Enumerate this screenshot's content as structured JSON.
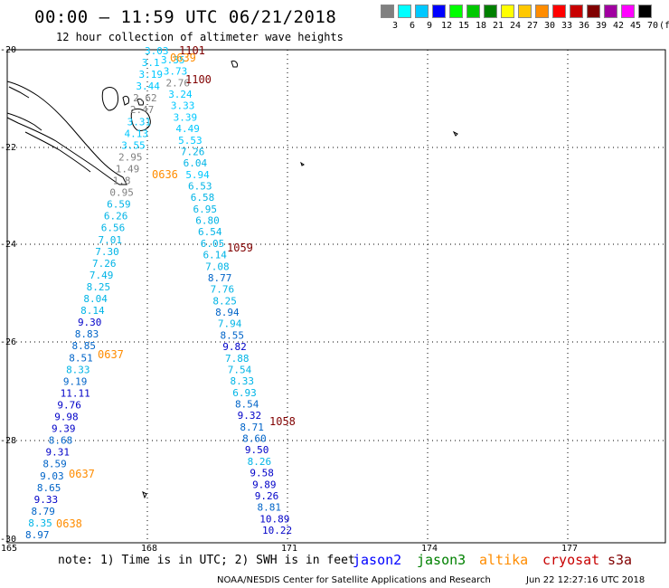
{
  "title": "00:00 – 11:59 UTC 06/21/2018",
  "subtitle": "12 hour collection of altimeter wave heights",
  "legend": {
    "unit": "(ft)",
    "colors": [
      "#808080",
      "#00ffff",
      "#00c8ff",
      "#0000ff",
      "#00ff00",
      "#00c800",
      "#008000",
      "#ffff00",
      "#ffc800",
      "#ff8c00",
      "#ff0000",
      "#c80000",
      "#800000",
      "#a000a0",
      "#ff00ff",
      "#000000"
    ],
    "labels": [
      "3",
      "6",
      "9",
      "12",
      "15",
      "18",
      "21",
      "24",
      "27",
      "30",
      "33",
      "36",
      "39",
      "42",
      "45",
      "70"
    ]
  },
  "axes": {
    "lat_labels": [
      "-20",
      "-22",
      "-24",
      "-26",
      "-28",
      "-30"
    ],
    "lon_labels": [
      "165",
      "168",
      "171",
      "174",
      "177"
    ]
  },
  "pass_times": [
    {
      "label": "1101",
      "color": "#800000"
    },
    {
      "label": "0639",
      "color": "#ff8c00"
    },
    {
      "label": "1100",
      "color": "#800000"
    },
    {
      "label": "0636",
      "color": "#ff8c00"
    },
    {
      "label": "1059",
      "color": "#800000"
    },
    {
      "label": "0637",
      "color": "#ff8c00"
    },
    {
      "label": "1058",
      "color": "#800000"
    },
    {
      "label": "0637",
      "color": "#ff8c00"
    },
    {
      "label": "0638",
      "color": "#ff8c00"
    }
  ],
  "track_west": [
    "3.03",
    "3.1",
    "3.19",
    "3.44",
    "2.62",
    "2.47",
    "3.31",
    "4.13",
    "3.55",
    "2.95",
    "1.49",
    "1.8",
    "0.95",
    "6.59",
    "6.26",
    "6.56",
    "7.01",
    "7.30",
    "7.26",
    "7.49",
    "8.25",
    "8.04",
    "8.14",
    "9.30",
    "8.83",
    "8.85",
    "8.51",
    "8.33",
    "9.19",
    "11.11",
    "9.76",
    "9.98",
    "9.39",
    "8.68",
    "9.31",
    "8.59",
    "9.03",
    "8.65",
    "9.33",
    "8.79",
    "8.35",
    "8.97"
  ],
  "track_east": [
    "3.35",
    "3.73",
    "2.76",
    "3.24",
    "3.33",
    "3.39",
    "4.49",
    "5.53",
    "7.26",
    "6.04",
    "5.94",
    "6.53",
    "6.58",
    "6.95",
    "6.80",
    "6.54",
    "6.05",
    "6.14",
    "7.08",
    "8.77",
    "7.76",
    "8.25",
    "8.94",
    "7.94",
    "8.55",
    "9.82",
    "7.88",
    "7.54",
    "8.33",
    "6.93",
    "8.54",
    "9.32",
    "8.71",
    "8.60",
    "9.50",
    "8.26",
    "9.58",
    "9.89",
    "9.26",
    "8.81",
    "10.89",
    "10.22"
  ],
  "note": "note: 1) Time is in UTC; 2) SWH is in feet",
  "satellites": [
    {
      "name": "jason2",
      "color": "#0000ff"
    },
    {
      "name": "jason3",
      "color": "#008000"
    },
    {
      "name": "altika",
      "color": "#ff8c00"
    },
    {
      "name": "cryosat",
      "color": "#c80000"
    },
    {
      "name": "s3a",
      "color": "#800000"
    }
  ],
  "footer": "NOAA/NESDIS Center for Satellite Applications and Research",
  "footer_time": "Jun 22 12:27:16 UTC 2018"
}
